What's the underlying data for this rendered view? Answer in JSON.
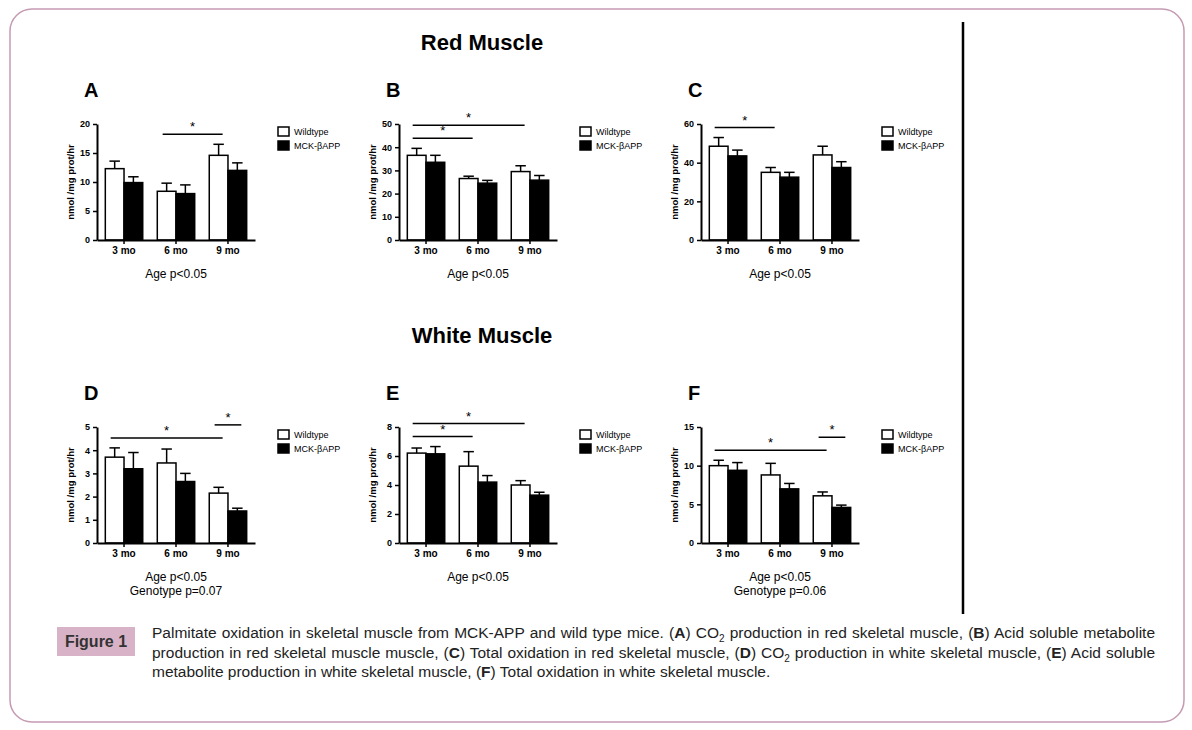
{
  "sections": [
    "Red Muscle",
    "White Muscle"
  ],
  "figure_label": "Figure 1",
  "caption": [
    {
      "text": "Palmitate oxidation in skeletal muscle from MCK-APP and wild type mice.  (",
      "format": "normal"
    },
    {
      "text": "A",
      "format": "bold"
    },
    {
      "text": ") CO",
      "format": "normal"
    },
    {
      "text": "2",
      "format": "sub"
    },
    {
      "text": " production in red skeletal muscle, (",
      "format": "normal"
    },
    {
      "text": "B",
      "format": "bold"
    },
    {
      "text": ") Acid soluble metabolite production in red skeletal muscle muscle, (",
      "format": "normal"
    },
    {
      "text": "C",
      "format": "bold"
    },
    {
      "text": ") Total oxidation in red skeletal muscle, (",
      "format": "normal"
    },
    {
      "text": "D",
      "format": "bold"
    },
    {
      "text": ") CO",
      "format": "normal"
    },
    {
      "text": "2",
      "format": "sub"
    },
    {
      "text": " production in white skeletal muscle, (",
      "format": "normal"
    },
    {
      "text": "E",
      "format": "bold"
    },
    {
      "text": ") Acid soluble metabolite production in white skeletal muscle, (",
      "format": "normal"
    },
    {
      "text": "F",
      "format": "bold"
    },
    {
      "text": ") Total oxidation in white skeletal muscle.",
      "format": "normal"
    }
  ],
  "chart_data": [
    {
      "type": "bar",
      "title": "A",
      "ylabel": "nmol /mg prot/hr",
      "categories": [
        "3 mo",
        "6 mo",
        "9 mo"
      ],
      "ylim": [
        0,
        20
      ],
      "yticks": [
        0,
        5,
        10,
        15,
        20
      ],
      "legend": "right",
      "series": [
        {
          "name": "Wildtype",
          "color": "#ffffff",
          "values": [
            12.3,
            8.4,
            14.6
          ],
          "error": [
            1.3,
            1.4,
            1.9
          ]
        },
        {
          "name": "MCK-βAPP",
          "color": "#000000",
          "values": [
            9.9,
            8.0,
            12.0
          ],
          "error": [
            1.0,
            1.5,
            1.3
          ]
        }
      ],
      "annotations": [
        "Age p<0.05"
      ],
      "brackets": [
        {
          "label": "*",
          "from": {
            "category": "6 mo",
            "series": "Wildtype"
          },
          "to": {
            "category": "9 mo",
            "series": "Wildtype"
          }
        }
      ]
    },
    {
      "type": "bar",
      "title": "B",
      "ylabel": "nmol /mg prot/hr",
      "categories": [
        "3 mo",
        "6 mo",
        "9 mo"
      ],
      "ylim": [
        0,
        50
      ],
      "yticks": [
        0,
        10,
        20,
        30,
        40,
        50
      ],
      "legend": "right",
      "series": [
        {
          "name": "Wildtype",
          "color": "#ffffff",
          "values": [
            36.5,
            26.5,
            29.5
          ],
          "error": [
            3.0,
            1.0,
            2.5
          ]
        },
        {
          "name": "MCK-βAPP",
          "color": "#000000",
          "values": [
            33.5,
            24.5,
            25.8
          ],
          "error": [
            3.0,
            1.2,
            2.0
          ]
        }
      ],
      "annotations": [
        "Age p<0.05"
      ],
      "brackets": [
        {
          "label": "*",
          "from": {
            "category": "3 mo",
            "series": "Wildtype"
          },
          "to": {
            "category": "6 mo",
            "series": "Wildtype"
          }
        },
        {
          "label": "*",
          "from": {
            "category": "3 mo",
            "series": "Wildtype"
          },
          "to": {
            "category": "9 mo",
            "series": "Wildtype"
          }
        }
      ]
    },
    {
      "type": "bar",
      "title": "C",
      "ylabel": "nmol /mg prot/hr",
      "categories": [
        "3 mo",
        "6 mo",
        "9 mo"
      ],
      "ylim": [
        0,
        60
      ],
      "yticks": [
        0,
        20,
        40,
        60
      ],
      "legend": "right",
      "series": [
        {
          "name": "Wildtype",
          "color": "#ffffff",
          "values": [
            48.5,
            35.0,
            44.0
          ],
          "error": [
            4.5,
            2.5,
            4.5
          ]
        },
        {
          "name": "MCK-βAPP",
          "color": "#000000",
          "values": [
            43.5,
            32.5,
            37.5
          ],
          "error": [
            3.0,
            2.5,
            3.0
          ]
        }
      ],
      "annotations": [
        "Age p<0.05"
      ],
      "brackets": [
        {
          "label": "*",
          "from": {
            "category": "3 mo",
            "series": "Wildtype"
          },
          "to": {
            "category": "6 mo",
            "series": "Wildtype"
          }
        }
      ]
    },
    {
      "type": "bar",
      "title": "D",
      "ylabel": "nmol /mg prot/hr",
      "categories": [
        "3 mo",
        "6 mo",
        "9 mo"
      ],
      "ylim": [
        0,
        5
      ],
      "yticks": [
        0,
        1,
        2,
        3,
        4,
        5
      ],
      "legend": "right",
      "series": [
        {
          "name": "Wildtype",
          "color": "#ffffff",
          "values": [
            3.7,
            3.45,
            2.15
          ],
          "error": [
            0.4,
            0.6,
            0.25
          ]
        },
        {
          "name": "MCK-βAPP",
          "color": "#000000",
          "values": [
            3.2,
            2.65,
            1.38
          ],
          "error": [
            0.7,
            0.35,
            0.12
          ]
        }
      ],
      "annotations": [
        "Age p<0.05",
        "Genotype p=0.07"
      ],
      "brackets": [
        {
          "label": "*",
          "from": {
            "category": "3 mo",
            "series": "Wildtype"
          },
          "to": {
            "category": "9 mo",
            "series": "Wildtype"
          }
        },
        {
          "label": "*",
          "from": {
            "category": "9 mo",
            "series": "Wildtype"
          },
          "to": {
            "category": "9 mo",
            "series": "MCK-βAPP"
          }
        }
      ]
    },
    {
      "type": "bar",
      "title": "E",
      "ylabel": "nmol /mg prot/hr",
      "categories": [
        "3 mo",
        "6 mo",
        "9 mo"
      ],
      "ylim": [
        0,
        8
      ],
      "yticks": [
        0,
        2,
        4,
        6,
        8
      ],
      "legend": "right",
      "series": [
        {
          "name": "Wildtype",
          "color": "#ffffff",
          "values": [
            6.2,
            5.3,
            4.0
          ],
          "error": [
            0.35,
            1.0,
            0.3
          ]
        },
        {
          "name": "MCK-βAPP",
          "color": "#000000",
          "values": [
            6.15,
            4.2,
            3.3
          ],
          "error": [
            0.5,
            0.45,
            0.2
          ]
        }
      ],
      "annotations": [
        "Age p<0.05"
      ],
      "brackets": [
        {
          "label": "*",
          "from": {
            "category": "3 mo",
            "series": "Wildtype"
          },
          "to": {
            "category": "6 mo",
            "series": "Wildtype"
          }
        },
        {
          "label": "*",
          "from": {
            "category": "3 mo",
            "series": "Wildtype"
          },
          "to": {
            "category": "9 mo",
            "series": "Wildtype"
          }
        }
      ]
    },
    {
      "type": "bar",
      "title": "F",
      "ylabel": "nmol /mg prot/hr",
      "categories": [
        "3 mo",
        "6 mo",
        "9 mo"
      ],
      "ylim": [
        0,
        15
      ],
      "yticks": [
        0,
        5,
        10,
        15
      ],
      "legend": "right",
      "series": [
        {
          "name": "Wildtype",
          "color": "#ffffff",
          "values": [
            10.0,
            8.8,
            6.1
          ],
          "error": [
            0.7,
            1.5,
            0.5
          ]
        },
        {
          "name": "MCK-βAPP",
          "color": "#000000",
          "values": [
            9.4,
            7.0,
            4.6
          ],
          "error": [
            1.0,
            0.7,
            0.3
          ]
        }
      ],
      "annotations": [
        "Age p<0.05",
        "Genotype p=0.06"
      ],
      "brackets": [
        {
          "label": "*",
          "from": {
            "category": "3 mo",
            "series": "Wildtype"
          },
          "to": {
            "category": "9 mo",
            "series": "Wildtype"
          }
        },
        {
          "label": "*",
          "from": {
            "category": "9 mo",
            "series": "Wildtype"
          },
          "to": {
            "category": "9 mo",
            "series": "MCK-βAPP"
          }
        }
      ]
    }
  ]
}
